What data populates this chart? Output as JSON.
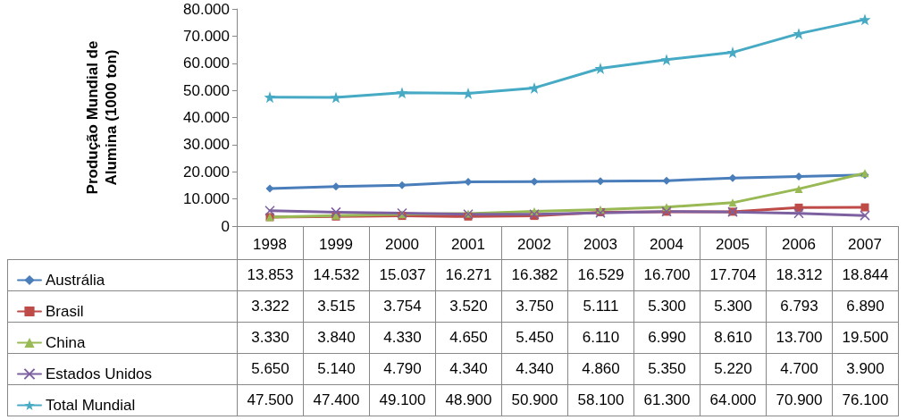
{
  "chart_data": {
    "type": "line",
    "ylabel": "Produção Mundial de Alumina (1000 ton)",
    "categories": [
      "1998",
      "1999",
      "2000",
      "2001",
      "2002",
      "2003",
      "2004",
      "2005",
      "2006",
      "2007"
    ],
    "series": [
      {
        "name": "Austrália",
        "color": "#4a7ebb",
        "marker": "diamond",
        "values": [
          13853,
          14532,
          15037,
          16271,
          16382,
          16529,
          16700,
          17704,
          18312,
          18844
        ],
        "value_labels": [
          "13.853",
          "14.532",
          "15.037",
          "16.271",
          "16.382",
          "16.529",
          "16.700",
          "17.704",
          "18.312",
          "18.844"
        ]
      },
      {
        "name": "Brasil",
        "color": "#be4b48",
        "marker": "square",
        "values": [
          3322,
          3515,
          3754,
          3520,
          3750,
          5111,
          5300,
          5300,
          6793,
          6890
        ],
        "value_labels": [
          "3.322",
          "3.515",
          "3.754",
          "3.520",
          "3.750",
          "5.111",
          "5.300",
          "5.300",
          "6.793",
          "6.890"
        ]
      },
      {
        "name": "China",
        "color": "#98b954",
        "marker": "triangle",
        "values": [
          3330,
          3840,
          4330,
          4650,
          5450,
          6110,
          6990,
          8610,
          13700,
          19500
        ],
        "value_labels": [
          "3.330",
          "3.840",
          "4.330",
          "4.650",
          "5.450",
          "6.110",
          "6.990",
          "8.610",
          "13.700",
          "19.500"
        ]
      },
      {
        "name": "Estados Unidos",
        "color": "#7d60a0",
        "marker": "cross",
        "values": [
          5650,
          5140,
          4790,
          4340,
          4340,
          4860,
          5350,
          5220,
          4700,
          3900
        ],
        "value_labels": [
          "5.650",
          "5.140",
          "4.790",
          "4.340",
          "4.340",
          "4.860",
          "5.350",
          "5.220",
          "4.700",
          "3.900"
        ]
      },
      {
        "name": "Total Mundial",
        "color": "#46aac5",
        "marker": "star",
        "values": [
          47500,
          47400,
          49100,
          48900,
          50900,
          58100,
          61300,
          64000,
          70900,
          76100
        ],
        "value_labels": [
          "47.500",
          "47.400",
          "49.100",
          "48.900",
          "50.900",
          "58.100",
          "61.300",
          "64.000",
          "70.900",
          "76.100"
        ]
      }
    ],
    "ylim": [
      0,
      80000
    ],
    "yticks": [
      {
        "value": 0,
        "label": "0"
      },
      {
        "value": 10000,
        "label": "10.000"
      },
      {
        "value": 20000,
        "label": "20.000"
      },
      {
        "value": 30000,
        "label": "30.000"
      },
      {
        "value": 40000,
        "label": "40.000"
      },
      {
        "value": 50000,
        "label": "50.000"
      },
      {
        "value": 60000,
        "label": "60.000"
      },
      {
        "value": 70000,
        "label": "70.000"
      },
      {
        "value": 80000,
        "label": "80.000"
      }
    ],
    "grid": false,
    "legend": "bottom left",
    "line_style": "solid"
  }
}
